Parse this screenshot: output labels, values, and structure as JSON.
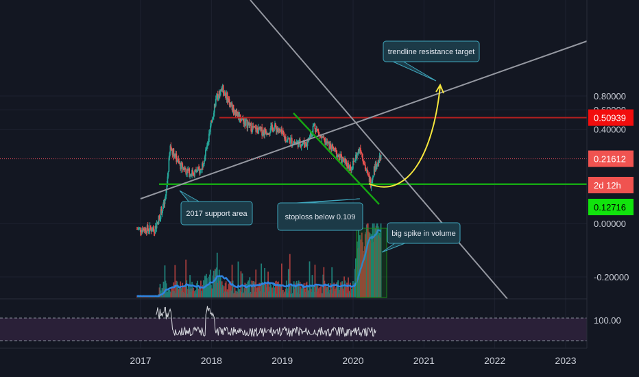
{
  "colors": {
    "background": "#131722",
    "up": "#26a69a",
    "down": "#ef5350",
    "support": "#16a513",
    "resistance": "#b21f1f",
    "trendline": "#9598a1",
    "curve": "#f6e63d",
    "ma": "#2f83e0",
    "rsi_band": "#2a2038",
    "callout_fill": "#1c3a47",
    "callout_border": "#3fa7bd",
    "current_badge": "#f05350",
    "target_badge": "#f20d0d",
    "stop_badge": "#11e30d"
  },
  "price_axis": {
    "ticks": [
      {
        "value": 0.8,
        "label": "0.80000"
      },
      {
        "value": 0.6,
        "label": "0.60000"
      },
      {
        "value": 0.4,
        "label": "0.40000"
      },
      {
        "value": 0.0,
        "label": "0.00000"
      },
      {
        "value": -0.2,
        "label": "-0.20000"
      }
    ],
    "badges": [
      {
        "name": "target",
        "value": 0.50939,
        "label": "0.50939",
        "color": "#f20d0d",
        "text_color": "#ffffff"
      },
      {
        "name": "current",
        "value": 0.21612,
        "label": "0.21612",
        "color": "#f05350",
        "text_color": "#ffffff"
      },
      {
        "name": "countdown",
        "label": "2d 12h",
        "color": "#f05350",
        "text_color": "#ffffff"
      },
      {
        "name": "stop",
        "value": 0.12716,
        "label": "0.12716",
        "color": "#11e30d",
        "text_color": "#000000"
      }
    ]
  },
  "rsi_axis": {
    "label": "100.00"
  },
  "time_axis": {
    "labels": [
      "2017",
      "2018",
      "2019",
      "2020",
      "2021",
      "2022",
      "2023"
    ]
  },
  "annotations": {
    "support": "2017 support area",
    "stoploss": "stoploss below 0.109",
    "target": "trendline resistance target",
    "volume": "big spike in volume"
  },
  "chart_data": {
    "type": "candlestick",
    "price_scale": "log",
    "x_range": [
      2016.9,
      2023.35
    ],
    "close_approx": [
      {
        "t": 2016.95,
        "v": 0.05
      },
      {
        "t": 2017.2,
        "v": 0.05
      },
      {
        "t": 2017.35,
        "v": 0.09
      },
      {
        "t": 2017.42,
        "v": 0.28
      },
      {
        "t": 2017.55,
        "v": 0.19
      },
      {
        "t": 2017.7,
        "v": 0.16
      },
      {
        "t": 2017.85,
        "v": 0.17
      },
      {
        "t": 2017.95,
        "v": 0.3
      },
      {
        "t": 2018.05,
        "v": 0.7
      },
      {
        "t": 2018.15,
        "v": 0.95
      },
      {
        "t": 2018.3,
        "v": 0.62
      },
      {
        "t": 2018.45,
        "v": 0.48
      },
      {
        "t": 2018.6,
        "v": 0.4
      },
      {
        "t": 2018.75,
        "v": 0.38
      },
      {
        "t": 2018.9,
        "v": 0.42
      },
      {
        "t": 2019.05,
        "v": 0.33
      },
      {
        "t": 2019.2,
        "v": 0.3
      },
      {
        "t": 2019.35,
        "v": 0.3
      },
      {
        "t": 2019.45,
        "v": 0.44
      },
      {
        "t": 2019.55,
        "v": 0.33
      },
      {
        "t": 2019.7,
        "v": 0.27
      },
      {
        "t": 2019.85,
        "v": 0.21
      },
      {
        "t": 2019.98,
        "v": 0.18
      },
      {
        "t": 2020.1,
        "v": 0.28
      },
      {
        "t": 2020.18,
        "v": 0.17
      },
      {
        "t": 2020.25,
        "v": 0.13
      },
      {
        "t": 2020.3,
        "v": 0.18
      },
      {
        "t": 2020.38,
        "v": 0.216
      }
    ],
    "levels": {
      "resistance": 0.50939,
      "current": 0.21612,
      "support": 0.12716
    }
  }
}
